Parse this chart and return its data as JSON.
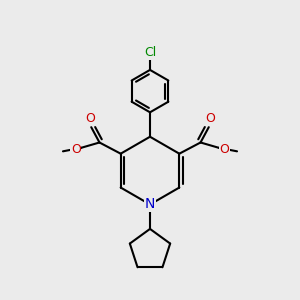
{
  "bg_color": "#ebebeb",
  "atom_colors": {
    "N": "#0000cc",
    "O": "#cc0000",
    "Cl": "#008800"
  },
  "lw": 1.5,
  "figsize": [
    3.0,
    3.0
  ],
  "dpi": 100,
  "xlim": [
    0,
    10
  ],
  "ylim": [
    0,
    10
  ]
}
